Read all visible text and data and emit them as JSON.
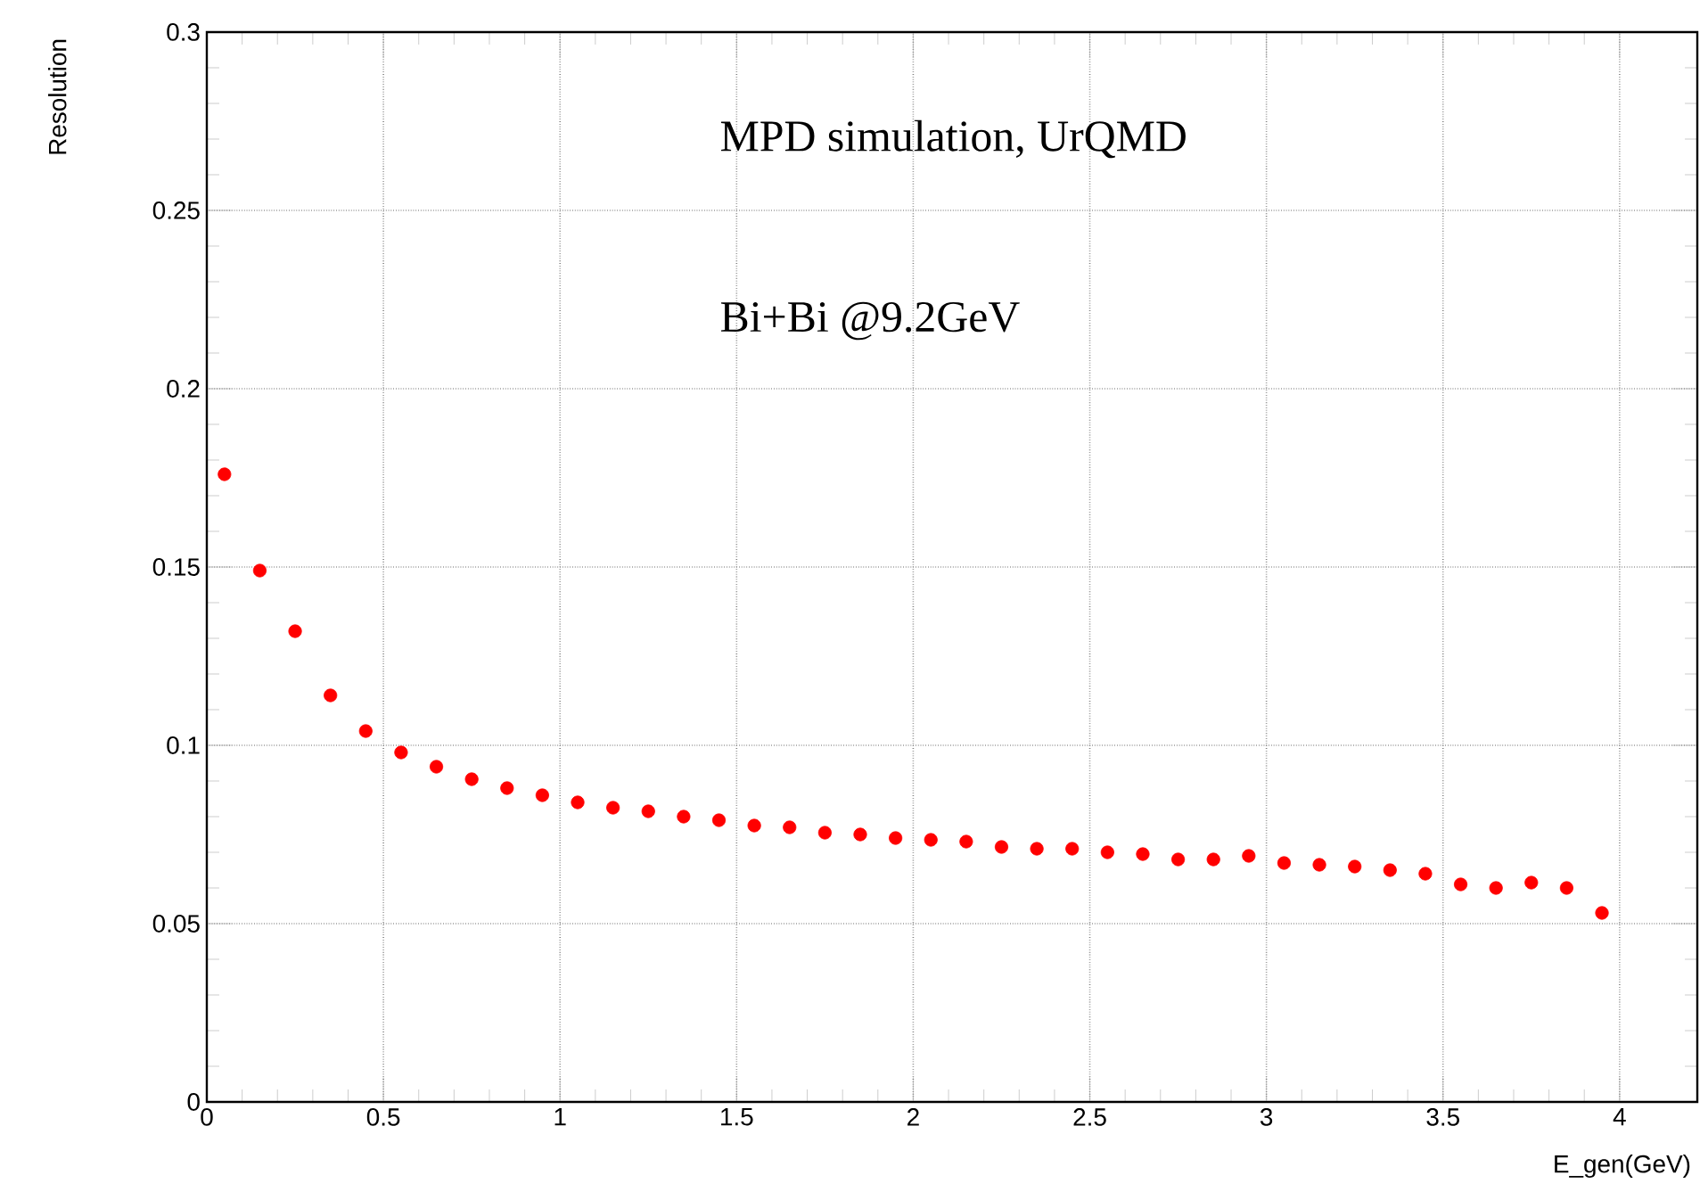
{
  "chart_data": {
    "type": "scatter",
    "xlabel": "E_gen(GeV)",
    "ylabel": "Resolution",
    "annotations": [
      "MPD simulation, UrQMD",
      "Bi+Bi @9.2GeV"
    ],
    "x": [
      0.05,
      0.15,
      0.25,
      0.35,
      0.45,
      0.55,
      0.65,
      0.75,
      0.85,
      0.95,
      1.05,
      1.15,
      1.25,
      1.35,
      1.45,
      1.55,
      1.65,
      1.75,
      1.85,
      1.95,
      2.05,
      2.15,
      2.25,
      2.35,
      2.45,
      2.55,
      2.65,
      2.75,
      2.85,
      2.95,
      3.05,
      3.15,
      3.25,
      3.35,
      3.45,
      3.55,
      3.65,
      3.75,
      3.85,
      3.95
    ],
    "series": [
      {
        "color": "#ff0000",
        "values": [
          0.176,
          0.149,
          0.132,
          0.114,
          0.104,
          0.098,
          0.094,
          0.0905,
          0.088,
          0.086,
          0.084,
          0.0825,
          0.0815,
          0.08,
          0.079,
          0.0775,
          0.077,
          0.0755,
          0.075,
          0.074,
          0.0735,
          0.073,
          0.0715,
          0.071,
          0.071,
          0.07,
          0.0695,
          0.068,
          0.068,
          0.069,
          0.067,
          0.0665,
          0.066,
          0.065,
          0.064,
          0.061,
          0.06,
          0.0615,
          0.06,
          0.053
        ]
      }
    ],
    "xlim": [
      0,
      4.22
    ],
    "ylim": [
      0,
      0.3
    ],
    "xticks": [
      0,
      0.5,
      1,
      1.5,
      2,
      2.5,
      3,
      3.5,
      4
    ],
    "yticks": [
      0,
      0.05,
      0.1,
      0.15,
      0.2,
      0.25,
      0.3
    ],
    "grid": true,
    "marker": "circle"
  }
}
